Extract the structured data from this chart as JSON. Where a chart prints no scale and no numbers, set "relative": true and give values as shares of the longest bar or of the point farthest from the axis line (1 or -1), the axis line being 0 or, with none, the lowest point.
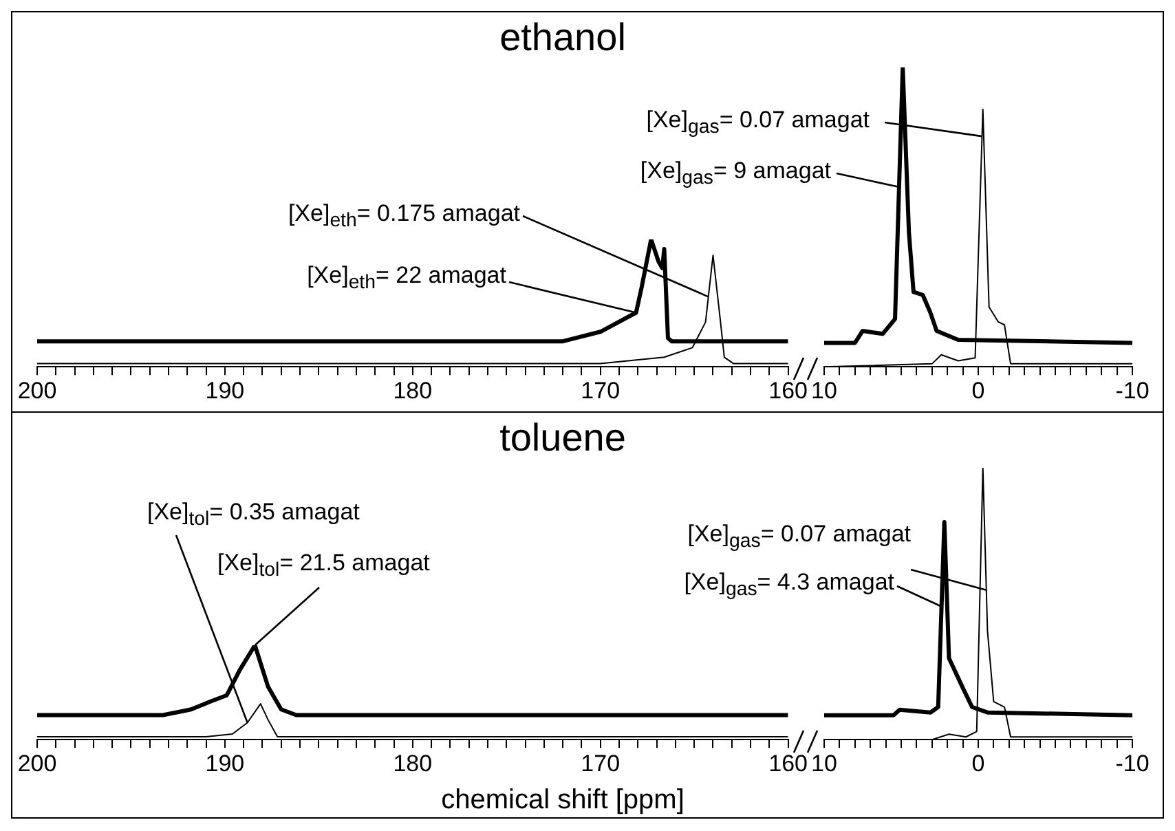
{
  "chart_data": [
    {
      "type": "line",
      "title": "ethanol",
      "relative": true,
      "marker": "none",
      "xlim": [
        200,
        160
      ],
      "xticks": [
        200,
        {
          "value": 199,
          "label": null
        },
        {
          "value": 198,
          "label": null
        },
        {
          "value": 197,
          "label": null
        },
        {
          "value": 196,
          "label": null
        },
        {
          "value": 195,
          "label": null
        },
        {
          "value": 194,
          "label": null
        },
        {
          "value": 193,
          "label": null
        },
        {
          "value": 192,
          "label": null
        },
        {
          "value": 191,
          "label": null
        },
        190,
        {
          "value": 189,
          "label": null
        },
        {
          "value": 188,
          "label": null
        },
        {
          "value": 187,
          "label": null
        },
        {
          "value": 186,
          "label": null
        },
        {
          "value": 185,
          "label": null
        },
        {
          "value": 184,
          "label": null
        },
        {
          "value": 183,
          "label": null
        },
        {
          "value": 182,
          "label": null
        },
        {
          "value": 181,
          "label": null
        },
        180,
        {
          "value": 179,
          "label": null
        },
        {
          "value": 178,
          "label": null
        },
        {
          "value": 177,
          "label": null
        },
        {
          "value": 176,
          "label": null
        },
        {
          "value": 175,
          "label": null
        },
        {
          "value": 174,
          "label": null
        },
        {
          "value": 173,
          "label": null
        },
        {
          "value": 172,
          "label": null
        },
        {
          "value": 171,
          "label": null
        },
        170,
        {
          "value": 169,
          "label": null
        },
        {
          "value": 168,
          "label": null
        },
        {
          "value": 167,
          "label": null
        },
        {
          "value": 166,
          "label": null
        },
        {
          "value": 165,
          "label": null
        },
        {
          "value": 164,
          "label": null
        },
        {
          "value": 163,
          "label": null
        },
        {
          "value": 162,
          "label": null
        },
        {
          "value": 161,
          "label": null
        },
        160
      ],
      "series": [
        {
          "color": "#000000",
          "x": [
            200,
            172,
            170,
            168.1,
            167.8,
            167.3,
            166.9,
            166.7,
            166.6,
            166.4,
            166.2,
            160
          ],
          "values": [
            0.2,
            0.2,
            0.275,
            0.425,
            0.625,
            1,
            0.825,
            0.775,
            0.925,
            0.225,
            0.2,
            0.2
          ]
        },
        {
          "color": "#000000",
          "x": [
            200,
            170,
            166.6,
            165.1,
            164.4,
            164,
            163.6,
            163.4,
            162.9,
            160
          ],
          "values": [
            0.025,
            0.025,
            0.075,
            0.15,
            0.35,
            0.875,
            0.35,
            0.075,
            0.025,
            0.025
          ]
        }
      ],
      "annotations": [
        {
          "text": "[Xe]$_{eth}$= 0.175 amagat",
          "x": 164.25,
          "y": 0.55
        },
        {
          "text": "[Xe]$_{eth}$= 22 amagat",
          "x": 168.1,
          "y": 0.425
        }
      ]
    },
    {
      "type": "line",
      "relative": true,
      "marker": "none",
      "xlim": [
        10,
        -10
      ],
      "xticks": [
        10,
        {
          "value": 9,
          "label": null
        },
        {
          "value": 8,
          "label": null
        },
        {
          "value": 7,
          "label": null
        },
        {
          "value": 6,
          "label": null
        },
        {
          "value": 5,
          "label": null
        },
        {
          "value": 4,
          "label": null
        },
        {
          "value": 3,
          "label": null
        },
        {
          "value": 2,
          "label": null
        },
        {
          "value": 1,
          "label": null
        },
        0,
        {
          "value": -1,
          "label": null
        },
        {
          "value": -2,
          "label": null
        },
        {
          "value": -3,
          "label": null
        },
        {
          "value": -4,
          "label": null
        },
        {
          "value": -5,
          "label": null
        },
        {
          "value": -6,
          "label": null
        },
        {
          "value": -7,
          "label": null
        },
        {
          "value": -8,
          "label": null
        },
        {
          "value": -9,
          "label": null
        },
        -10
      ],
      "series": [
        {
          "color": "#000000",
          "x": [
            10,
            8,
            7.5,
            6.2,
            5.4,
            4.9,
            4.5,
            4.2,
            3.6,
            3.1,
            2.7,
            1.3,
            -10
          ],
          "values": [
            0.08,
            0.08,
            0.12,
            0.11,
            0.16,
            1,
            0.45,
            0.25,
            0.24,
            0.18,
            0.12,
            0.09,
            0.08
          ]
        },
        {
          "color": "#000000",
          "x": [
            10,
            3,
            2.4,
            1.3,
            0.2,
            -0.3,
            -0.7,
            -1.3,
            -1.7,
            -2.1,
            -10
          ],
          "values": [
            0,
            0.01,
            0.04,
            0.02,
            0.03,
            0.86,
            0.2,
            0.15,
            0.14,
            0.01,
            0.01
          ]
        }
      ],
      "annotations": [
        {
          "text": "[Xe]$_{gas}$= 0.07 amagat",
          "x": -0.25,
          "y": 0.77
        },
        {
          "text": "[Xe]$_{gas}$= 9 amagat",
          "x": 5.1,
          "y": 0.6
        }
      ]
    },
    {
      "type": "line",
      "title": "toluene",
      "xlabel": "chemical shift [ppm]",
      "relative": true,
      "marker": "none",
      "xlim": [
        200,
        160
      ],
      "xticks": [
        200,
        {
          "value": 199,
          "label": null
        },
        {
          "value": 198,
          "label": null
        },
        {
          "value": 197,
          "label": null
        },
        {
          "value": 196,
          "label": null
        },
        {
          "value": 195,
          "label": null
        },
        {
          "value": 194,
          "label": null
        },
        {
          "value": 193,
          "label": null
        },
        {
          "value": 192,
          "label": null
        },
        {
          "value": 191,
          "label": null
        },
        190,
        {
          "value": 189,
          "label": null
        },
        {
          "value": 188,
          "label": null
        },
        {
          "value": 187,
          "label": null
        },
        {
          "value": 186,
          "label": null
        },
        {
          "value": 185,
          "label": null
        },
        {
          "value": 184,
          "label": null
        },
        {
          "value": 183,
          "label": null
        },
        {
          "value": 182,
          "label": null
        },
        {
          "value": 181,
          "label": null
        },
        180,
        {
          "value": 179,
          "label": null
        },
        {
          "value": 178,
          "label": null
        },
        {
          "value": 177,
          "label": null
        },
        {
          "value": 176,
          "label": null
        },
        {
          "value": 175,
          "label": null
        },
        {
          "value": 174,
          "label": null
        },
        {
          "value": 173,
          "label": null
        },
        {
          "value": 172,
          "label": null
        },
        {
          "value": 171,
          "label": null
        },
        170,
        {
          "value": 169,
          "label": null
        },
        {
          "value": 168,
          "label": null
        },
        {
          "value": 167,
          "label": null
        },
        {
          "value": 166,
          "label": null
        },
        {
          "value": 165,
          "label": null
        },
        {
          "value": 164,
          "label": null
        },
        {
          "value": 163,
          "label": null
        },
        {
          "value": 162,
          "label": null
        },
        {
          "value": 161,
          "label": null
        },
        160
      ],
      "series": [
        {
          "color": "#000000",
          "x": [
            200,
            193.3,
            191.8,
            190.7,
            189.9,
            189.2,
            188.4,
            187.7,
            187,
            186.2,
            160
          ],
          "values": [
            0.26,
            0.26,
            0.32,
            0.41,
            0.47,
            0.74,
            1,
            0.56,
            0.32,
            0.26,
            0.26
          ]
        },
        {
          "color": "#000000",
          "x": [
            200,
            191,
            189.6,
            188.8,
            188.1,
            187.7,
            187.2,
            160
          ],
          "values": [
            0.03,
            0.03,
            0.06,
            0.18,
            0.38,
            0.21,
            0.03,
            0.03
          ]
        }
      ],
      "annotations": [
        {
          "text": "[Xe]$_{tol}$= 0.35 amagat",
          "x": 188.8,
          "y": 0.18
        },
        {
          "text": "[Xe]$_{tol}$= 21.5 amagat",
          "x": 188.4,
          "y": 1
        }
      ]
    },
    {
      "type": "line",
      "relative": true,
      "marker": "none",
      "xlim": [
        10,
        -10
      ],
      "xticks": [
        10,
        {
          "value": 9,
          "label": null
        },
        {
          "value": 8,
          "label": null
        },
        {
          "value": 7,
          "label": null
        },
        {
          "value": 6,
          "label": null
        },
        {
          "value": 5,
          "label": null
        },
        {
          "value": 4,
          "label": null
        },
        {
          "value": 3,
          "label": null
        },
        {
          "value": 2,
          "label": null
        },
        {
          "value": 1,
          "label": null
        },
        0,
        {
          "value": -1,
          "label": null
        },
        {
          "value": -2,
          "label": null
        },
        {
          "value": -3,
          "label": null
        },
        {
          "value": -4,
          "label": null
        },
        {
          "value": -5,
          "label": null
        },
        {
          "value": -6,
          "label": null
        },
        {
          "value": -7,
          "label": null
        },
        {
          "value": -8,
          "label": null
        },
        {
          "value": -9,
          "label": null
        },
        -10
      ],
      "series": [
        {
          "color": "#000000",
          "x": [
            10,
            5.5,
            5.1,
            3.1,
            2.6,
            2.2,
            1.9,
            1,
            0.4,
            -0.6,
            -10
          ],
          "values": [
            0.09,
            0.09,
            0.11,
            0.1,
            0.12,
            0.8,
            0.3,
            0.19,
            0.12,
            0.1,
            0.09
          ]
        },
        {
          "color": "#000000",
          "x": [
            10,
            3,
            1.9,
            0.8,
            0.1,
            -0.3,
            -0.6,
            -1,
            -1.7,
            -2.1,
            -10
          ],
          "values": [
            0,
            0,
            0.02,
            0.01,
            0.03,
            1,
            0.4,
            0.14,
            0.12,
            0.01,
            0.01
          ]
        }
      ],
      "annotations": [
        {
          "text": "[Xe]$_{gas}$= 0.07 amagat",
          "x": -0.52,
          "y": 0.55
        },
        {
          "text": "[Xe]$_{gas}$= 4.3 amagat",
          "x": 2.4,
          "y": 0.49
        }
      ]
    }
  ]
}
